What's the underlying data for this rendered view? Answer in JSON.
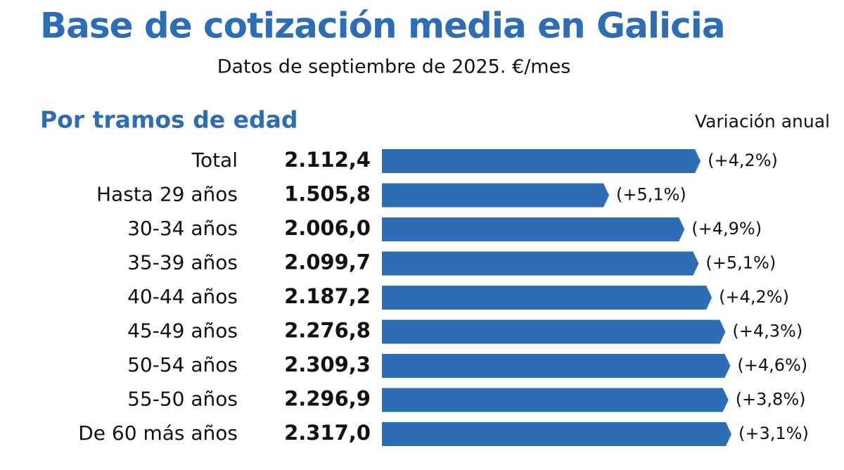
{
  "chart_data": {
    "type": "bar",
    "title": "Base de cotización media en Galicia",
    "subtitle": "Datos de septiembre de 2025. €/mes",
    "section_title": "Por tramos de edad",
    "categories": [
      "Total",
      "Hasta 29 años",
      "30-34 años",
      "35-39 años",
      "40-44 años",
      "45-49 años",
      "50-54 años",
      "55-50 años",
      "De 60 más años"
    ],
    "values": [
      2112.4,
      1505.8,
      2006.0,
      2099.7,
      2187.2,
      2276.8,
      2309.3,
      2296.9,
      2317.0
    ],
    "value_labels": [
      "2.112,4",
      "1.505,8",
      "2.006,0",
      "2.099,7",
      "2.187,2",
      "2.276,8",
      "2.309,3",
      "2.296,9",
      "2.317,0"
    ],
    "color": "#2d6db5",
    "annual_change": {
      "name": "Variación anual",
      "values": [
        4.2,
        5.1,
        4.9,
        5.1,
        4.2,
        4.3,
        4.6,
        3.8,
        3.1
      ],
      "value_labels": [
        "(+4,2%)",
        "(+5,1%)",
        "(+4,9%)",
        "(+5,1%)",
        "(+4,2%)",
        "(+4,3%)",
        "(+4,6%)",
        "(+3,8%)",
        "(+3,1%)"
      ]
    }
  }
}
